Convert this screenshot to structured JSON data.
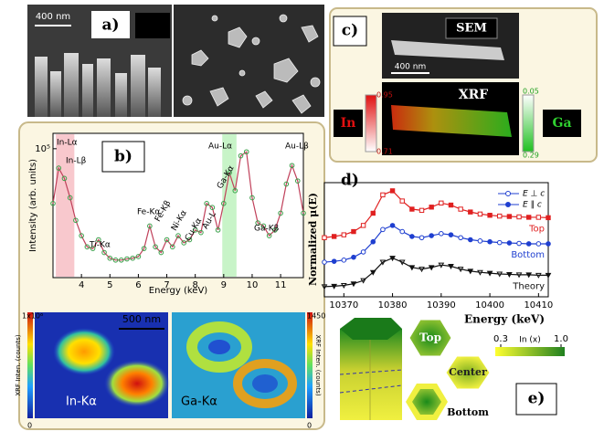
{
  "panel_a": {
    "label": "a)",
    "scale_bar": "400 nm"
  },
  "panel_b": {
    "label": "b)",
    "spectrum": {
      "type": "scatter",
      "xlabel": "Energy (keV)",
      "ylabel": "Intensity (arb. units)",
      "log_y": true,
      "color": "#3aa04a",
      "line_color": "#c0405a",
      "xlim": [
        3,
        11.8
      ],
      "xticks": [
        4,
        5,
        6,
        7,
        8,
        9,
        10,
        11
      ],
      "ylim": [
        10,
        300000
      ],
      "yticks": [
        {
          "value": 100000,
          "label": "10⁵"
        }
      ],
      "x": [
        3.0,
        3.2,
        3.4,
        3.6,
        3.8,
        4.0,
        4.2,
        4.4,
        4.6,
        4.8,
        5.0,
        5.2,
        5.4,
        5.6,
        5.8,
        6.0,
        6.2,
        6.4,
        6.6,
        6.8,
        7.0,
        7.2,
        7.4,
        7.6,
        7.8,
        8.0,
        8.2,
        8.4,
        8.6,
        8.8,
        9.0,
        9.2,
        9.4,
        9.6,
        9.8,
        10.0,
        10.2,
        10.4,
        10.6,
        10.8,
        11.0,
        11.2,
        11.4,
        11.6,
        11.8
      ],
      "values": [
        2000,
        25000,
        12000,
        3000,
        600,
        200,
        90,
        80,
        150,
        60,
        40,
        35,
        35,
        38,
        40,
        45,
        80,
        400,
        90,
        60,
        150,
        90,
        200,
        120,
        150,
        300,
        250,
        2000,
        1500,
        300,
        2000,
        18000,
        5000,
        60000,
        80000,
        3000,
        500,
        400,
        200,
        300,
        1000,
        8000,
        30000,
        10000,
        1000
      ],
      "peaks": [
        "In-Lα",
        "In-Lβ",
        "Ti-Kα",
        "Fe-Kα",
        "Fe-Kβ",
        "Ni-Kα",
        "Cu-Kα",
        "Au-L",
        "Ga-Kα",
        "Au-Lα",
        "Ga-Kβ",
        "Au-Lβ"
      ]
    },
    "maps": {
      "scale_bar": "500 nm",
      "left": {
        "label": "In-Kα",
        "colorbar_title": "XRF Inten. (counts)",
        "max": "1x10⁶",
        "min": 0
      },
      "right": {
        "label": "Ga-Kα",
        "colorbar_title": "XRF Inten. (counts)",
        "max": 1450,
        "min": 0
      }
    }
  },
  "panel_c": {
    "label": "c)",
    "sem_label": "SEM",
    "scale_bar": "400 nm",
    "xrf_label": "XRF",
    "in_label": "In",
    "in_max": 0.95,
    "in_min": 0.71,
    "ga_label": "Ga",
    "ga_max": 0.05,
    "ga_min": 0.29
  },
  "panel_d": {
    "label": "d)",
    "type": "line",
    "xlabel": "Energy (keV)",
    "ylabel": "Normalized μ(E)",
    "xlim": [
      10366,
      10412
    ],
    "xticks": [
      10370,
      10380,
      10390,
      10400,
      10410
    ],
    "ylim": [
      0.3,
      3.1
    ],
    "x": [
      10366,
      10368,
      10370,
      10372,
      10374,
      10376,
      10378,
      10380,
      10382,
      10384,
      10386,
      10388,
      10390,
      10392,
      10394,
      10396,
      10398,
      10400,
      10402,
      10404,
      10406,
      10408,
      10410,
      10412
    ],
    "series": [
      {
        "name": "Top",
        "color": "#e02020",
        "values": [
          1.75,
          1.78,
          1.82,
          1.9,
          2.05,
          2.35,
          2.8,
          2.9,
          2.65,
          2.45,
          2.42,
          2.5,
          2.6,
          2.55,
          2.45,
          2.38,
          2.33,
          2.3,
          2.28,
          2.27,
          2.26,
          2.25,
          2.25,
          2.24
        ]
      },
      {
        "name": "Bottom",
        "color": "#1f3fd0",
        "values": [
          1.15,
          1.17,
          1.2,
          1.27,
          1.4,
          1.65,
          1.95,
          2.05,
          1.9,
          1.78,
          1.75,
          1.8,
          1.85,
          1.82,
          1.75,
          1.7,
          1.67,
          1.65,
          1.63,
          1.62,
          1.61,
          1.6,
          1.6,
          1.6
        ]
      },
      {
        "name": "Theory",
        "color": "#111111",
        "values": [
          0.55,
          0.56,
          0.58,
          0.62,
          0.7,
          0.9,
          1.15,
          1.25,
          1.15,
          1.02,
          0.98,
          1.02,
          1.08,
          1.05,
          0.98,
          0.93,
          0.9,
          0.88,
          0.86,
          0.85,
          0.84,
          0.84,
          0.83,
          0.83
        ]
      }
    ],
    "legend": [
      "E ⊥ c",
      "E ∥ c"
    ]
  },
  "panel_e": {
    "label": "e)",
    "top": "Top",
    "center": "Center",
    "bottom": "Bottom",
    "colorbar_title": "In (x)",
    "colorbar_ticks": [
      0.3,
      {
        "value": 1,
        "label": "1.0"
      }
    ]
  }
}
